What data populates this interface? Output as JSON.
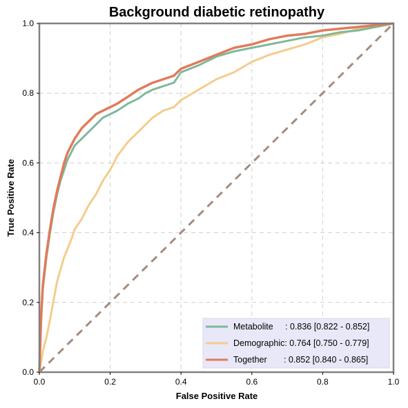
{
  "chart_data": {
    "type": "line",
    "title": "Background diabetic retinopathy",
    "xlabel": "False Positive Rate",
    "ylabel": "True Positive Rate",
    "xlim": [
      0,
      1
    ],
    "ylim": [
      0,
      1
    ],
    "x_ticks": [
      "0.0",
      "0.2",
      "0.4",
      "0.6",
      "0.8",
      "1.0"
    ],
    "y_ticks": [
      "0.0",
      "0.2",
      "0.4",
      "0.6",
      "0.8",
      "1.0"
    ],
    "grid": true,
    "legend_position": "bottom-right",
    "series": [
      {
        "name": "Metabolite",
        "legend_label": "Metabolite     : 0.836 [0.822 - 0.852]",
        "color": "#7fb89b",
        "x": [
          0,
          0.005,
          0.01,
          0.02,
          0.03,
          0.04,
          0.05,
          0.06,
          0.07,
          0.08,
          0.09,
          0.1,
          0.12,
          0.14,
          0.16,
          0.18,
          0.2,
          0.22,
          0.25,
          0.28,
          0.3,
          0.32,
          0.35,
          0.38,
          0.4,
          0.45,
          0.5,
          0.55,
          0.6,
          0.65,
          0.7,
          0.75,
          0.8,
          0.85,
          0.9,
          0.95,
          1.0
        ],
        "y": [
          0,
          0.15,
          0.24,
          0.33,
          0.4,
          0.46,
          0.51,
          0.55,
          0.58,
          0.61,
          0.63,
          0.65,
          0.67,
          0.69,
          0.71,
          0.73,
          0.74,
          0.75,
          0.77,
          0.785,
          0.8,
          0.81,
          0.82,
          0.83,
          0.86,
          0.88,
          0.905,
          0.92,
          0.93,
          0.94,
          0.95,
          0.96,
          0.965,
          0.975,
          0.98,
          0.99,
          1.0
        ]
      },
      {
        "name": "Demographic",
        "legend_label": "Demographic: 0.764 [0.750 - 0.779]",
        "color": "#f4cc8c",
        "x": [
          0,
          0.005,
          0.01,
          0.02,
          0.03,
          0.05,
          0.07,
          0.09,
          0.1,
          0.12,
          0.14,
          0.16,
          0.18,
          0.2,
          0.22,
          0.25,
          0.28,
          0.3,
          0.32,
          0.35,
          0.38,
          0.4,
          0.45,
          0.5,
          0.55,
          0.6,
          0.65,
          0.7,
          0.75,
          0.8,
          0.85,
          0.9,
          0.95,
          1.0
        ],
        "y": [
          0,
          0.03,
          0.06,
          0.1,
          0.15,
          0.26,
          0.33,
          0.38,
          0.41,
          0.44,
          0.48,
          0.51,
          0.55,
          0.58,
          0.62,
          0.66,
          0.69,
          0.71,
          0.73,
          0.75,
          0.76,
          0.78,
          0.81,
          0.84,
          0.86,
          0.89,
          0.91,
          0.925,
          0.94,
          0.96,
          0.97,
          0.985,
          0.99,
          1.0
        ]
      },
      {
        "name": "Together",
        "legend_label": "Together       : 0.852 [0.840 - 0.865]",
        "color": "#e07b5b",
        "x": [
          0,
          0.005,
          0.01,
          0.02,
          0.03,
          0.04,
          0.05,
          0.06,
          0.07,
          0.08,
          0.09,
          0.1,
          0.12,
          0.14,
          0.16,
          0.18,
          0.2,
          0.22,
          0.25,
          0.28,
          0.3,
          0.32,
          0.35,
          0.38,
          0.4,
          0.45,
          0.5,
          0.55,
          0.6,
          0.65,
          0.7,
          0.75,
          0.8,
          0.85,
          0.9,
          0.95,
          1.0
        ],
        "y": [
          0,
          0.16,
          0.25,
          0.34,
          0.41,
          0.47,
          0.52,
          0.56,
          0.6,
          0.63,
          0.65,
          0.67,
          0.7,
          0.72,
          0.74,
          0.75,
          0.76,
          0.77,
          0.79,
          0.81,
          0.82,
          0.83,
          0.84,
          0.85,
          0.87,
          0.89,
          0.91,
          0.93,
          0.94,
          0.955,
          0.965,
          0.97,
          0.98,
          0.985,
          0.99,
          0.995,
          1.0
        ]
      }
    ],
    "reference_line": {
      "x": [
        0,
        1
      ],
      "y": [
        0,
        1
      ],
      "color": "#a68b7c",
      "style": "dashed"
    },
    "legend_background": "#e8e8f8"
  }
}
